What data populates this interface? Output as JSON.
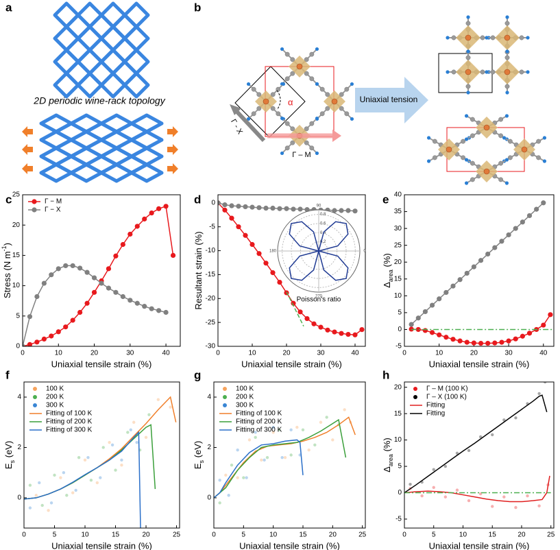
{
  "panel_a": {
    "label": "a",
    "caption": "2D periodic wine-rack topology"
  },
  "panel_b": {
    "label": "b",
    "angle": "α",
    "gamma_m": "Γ – M",
    "gamma_x": "Γ - X",
    "arrow": "Uniaxial tension"
  },
  "chart_data": [
    {
      "type": "line",
      "panel": "c",
      "xlabel": "Uniaxial tensile strain (%)",
      "ylabel": [
        "Stress (N m",
        "-1",
        ")"
      ],
      "ylabel_shift": "super",
      "xlim": [
        0,
        44
      ],
      "xticks": [
        0,
        10,
        20,
        30,
        40
      ],
      "ylim": [
        0,
        25
      ],
      "yticks": [
        0,
        5,
        10,
        15,
        20,
        25
      ],
      "legend": "upper left",
      "series": [
        {
          "name": "Γ − M",
          "color": "#e8191d",
          "marker": true,
          "x": [
            0,
            2,
            4,
            6,
            8,
            10,
            12,
            14,
            16,
            18,
            20,
            22,
            24,
            26,
            28,
            30,
            32,
            34,
            36,
            38,
            40,
            42
          ],
          "values": [
            0,
            0.3,
            0.7,
            1.2,
            1.7,
            2.4,
            3.2,
            4.3,
            5.6,
            7.1,
            8.9,
            10.8,
            12.8,
            14.9,
            16.8,
            18.5,
            19.8,
            21,
            22,
            22.7,
            23.1,
            15
          ]
        },
        {
          "name": "Γ − X",
          "color": "#808080",
          "marker": true,
          "x": [
            0,
            2,
            4,
            6,
            8,
            10,
            12,
            14,
            16,
            18,
            20,
            22,
            24,
            26,
            28,
            30,
            32,
            34,
            36,
            38,
            40
          ],
          "values": [
            0,
            4.9,
            8.2,
            10.4,
            11.8,
            12.8,
            13.3,
            13.3,
            12.9,
            12.2,
            11.3,
            10.4,
            9.6,
            8.9,
            8.2,
            7.6,
            7.1,
            6.6,
            6.2,
            5.9,
            5.6
          ]
        }
      ]
    },
    {
      "type": "line",
      "panel": "d",
      "xlabel": "Uniaxial tensile strain (%)",
      "ylabel": [
        "Resultant strain (%)"
      ],
      "xlim": [
        0,
        43
      ],
      "xticks": [
        0,
        10,
        20,
        30,
        40
      ],
      "ylim": [
        -30,
        1.7
      ],
      "yticks": [
        0,
        -5,
        -10,
        -15,
        -20,
        -25,
        -30
      ],
      "series": [
        {
          "color": "#e8191d",
          "marker": true,
          "x": [
            0,
            2,
            4,
            6,
            8,
            10,
            12,
            14,
            16,
            18,
            20,
            22,
            24,
            26,
            28,
            30,
            32,
            34,
            36,
            38,
            40,
            42
          ],
          "values": [
            0,
            -1.5,
            -3.2,
            -5,
            -6.8,
            -8.7,
            -10.6,
            -12.6,
            -14.6,
            -16.6,
            -18.8,
            -21,
            -22.8,
            -24.2,
            -25.3,
            -26,
            -26.6,
            -27,
            -27.3,
            -27.5,
            -27.6,
            -26.5
          ]
        },
        {
          "color": "#808080",
          "marker": true,
          "x": [
            0,
            2,
            4,
            6,
            8,
            10,
            12,
            14,
            16,
            18,
            20,
            22,
            24,
            26,
            28,
            30,
            32,
            34,
            36,
            38,
            40
          ],
          "values": [
            0,
            -0.4,
            -0.6,
            -0.7,
            -0.8,
            -0.9,
            -1,
            -1.1,
            -1.1,
            -1.2,
            -1.2,
            -1.3,
            -1.3,
            -1.4,
            -1.4,
            -1.5,
            -1.5,
            -1.6,
            -1.6,
            -1.6,
            -1.7
          ]
        },
        {
          "color": "#4caf50",
          "style": "dash",
          "x": [
            20,
            25
          ],
          "values": [
            -18.6,
            -25.8
          ]
        }
      ]
    },
    {
      "type": "line",
      "panel": "e",
      "xlabel": "Uniaxial tensile strain (%)",
      "ylabel": [
        "Δ",
        "area",
        " (%)"
      ],
      "ylabel_shift": "sub",
      "xlim": [
        0,
        43
      ],
      "xticks": [
        0,
        10,
        20,
        30,
        40
      ],
      "ylim": [
        -5,
        40
      ],
      "yticks": [
        -5,
        0,
        5,
        10,
        15,
        20,
        25,
        30,
        35,
        40
      ],
      "series": [
        {
          "color": "#808080",
          "marker": true,
          "x": [
            2,
            4,
            6,
            8,
            10,
            12,
            14,
            16,
            18,
            20,
            22,
            24,
            26,
            28,
            30,
            32,
            34,
            36,
            38,
            40
          ],
          "values": [
            1.5,
            3.4,
            5.3,
            7.2,
            9.1,
            11,
            12.9,
            14.8,
            16.7,
            18.6,
            20.5,
            22.4,
            24.3,
            26.2,
            28.1,
            30,
            31.9,
            33.8,
            35.7,
            37.6
          ]
        },
        {
          "color": "#e8191d",
          "marker": true,
          "x": [
            2,
            4,
            6,
            8,
            10,
            12,
            14,
            16,
            18,
            20,
            22,
            24,
            26,
            28,
            30,
            32,
            34,
            36,
            38,
            40,
            42
          ],
          "values": [
            0.1,
            0,
            -0.3,
            -0.9,
            -1.6,
            -2.3,
            -2.9,
            -3.4,
            -3.8,
            -4,
            -4.1,
            -4.1,
            -4,
            -3.8,
            -3.4,
            -2.8,
            -2,
            -1.1,
            0,
            1.3,
            4.4
          ]
        },
        {
          "color": "#4caf50",
          "style": "dashdot",
          "x": [
            2,
            42.5
          ],
          "values": [
            0,
            0
          ]
        }
      ]
    },
    {
      "type": "polar",
      "label": "Poisson's ratio",
      "rlim": [
        0,
        0.9
      ],
      "rticks": [
        0.2,
        0.4,
        0.6,
        0.8
      ],
      "angle_ticks": [
        0,
        90,
        180,
        270
      ],
      "color": "#1f3a93",
      "theta": [
        0,
        15,
        30,
        45,
        60,
        75,
        90,
        105,
        120,
        135,
        150,
        165,
        180,
        195,
        210,
        225,
        240,
        255,
        270,
        285,
        300,
        315,
        330,
        345
      ],
      "r": [
        0,
        0.43,
        0.74,
        0.85,
        0.74,
        0.43,
        0,
        0.43,
        0.74,
        0.85,
        0.74,
        0.43,
        0,
        0.43,
        0.74,
        0.85,
        0.74,
        0.43,
        0,
        0.43,
        0.74,
        0.85,
        0.74,
        0.43
      ]
    },
    {
      "type": "line",
      "panel": "f",
      "xlabel": "Uniaxial tensile strain (%)",
      "ylabel": [
        "E",
        "s",
        " (eV)"
      ],
      "ylabel_shift": "sub",
      "xlim": [
        0,
        25.5
      ],
      "xticks": [
        0,
        5,
        10,
        15,
        20,
        25
      ],
      "ylim": [
        -1.2,
        4.6
      ],
      "yticks": [
        0,
        2,
        4
      ],
      "legend": "upper left",
      "series": [
        {
          "name": "100 K",
          "kind": "scatter",
          "color": "#f7a35c",
          "x": [
            2,
            4,
            6,
            8,
            10,
            12,
            14,
            16,
            18,
            20,
            22,
            24
          ],
          "values": [
            0.1,
            -0.5,
            0.8,
            0.2,
            1.5,
            0.6,
            2.2,
            1.3,
            3,
            2.4,
            3.9,
            3.6
          ]
        },
        {
          "name": "200 K",
          "kind": "scatter",
          "color": "#4caf50",
          "x": [
            1,
            3,
            5,
            7,
            9,
            11,
            13,
            15,
            17,
            19,
            20.5
          ],
          "values": [
            0.5,
            -0.3,
            0.9,
            0.1,
            1.6,
            0.7,
            2,
            1.1,
            2.6,
            1.9,
            3.3
          ]
        },
        {
          "name": "300 K",
          "kind": "scatter",
          "color": "#3a86d4",
          "x": [
            1,
            2.5,
            4.5,
            6.5,
            8.5,
            10.5,
            12.5,
            14.5,
            16,
            17.5,
            18.5
          ],
          "values": [
            -0.4,
            0.6,
            -0.2,
            1,
            0.3,
            1.6,
            0.8,
            2.1,
            1.5,
            2.7,
            2.2
          ]
        },
        {
          "name": "Fitting of 100 K",
          "color": "#f07f2a",
          "x": [
            0,
            2,
            4,
            6,
            8,
            10,
            12,
            14,
            16,
            18,
            20,
            22,
            24,
            24.9
          ],
          "values": [
            -0.05,
            0,
            0.15,
            0.35,
            0.6,
            0.9,
            1.2,
            1.55,
            1.95,
            2.45,
            2.95,
            3.5,
            4,
            3
          ]
        },
        {
          "name": "Fitting of 200 K",
          "color": "#3a9f3a",
          "x": [
            0,
            2,
            4,
            6,
            8,
            10,
            12,
            14,
            16,
            18,
            20,
            20.8,
            21.5
          ],
          "values": [
            -0.05,
            0,
            0.15,
            0.35,
            0.6,
            0.9,
            1.2,
            1.5,
            1.9,
            2.35,
            2.8,
            2.9,
            0.35
          ]
        },
        {
          "name": "Fitting of 300 K",
          "color": "#2a6fc9",
          "x": [
            0,
            2,
            4,
            6,
            8,
            10,
            12,
            14,
            16,
            18,
            18.8,
            19.1
          ],
          "values": [
            -0.05,
            0,
            0.15,
            0.35,
            0.62,
            0.92,
            1.2,
            1.5,
            1.85,
            2.4,
            2.6,
            -1.2
          ]
        }
      ]
    },
    {
      "type": "line",
      "panel": "g",
      "xlabel": "Uniaxial tensile strain (%)",
      "ylabel": [
        "E",
        "s",
        " (eV)"
      ],
      "ylabel_shift": "sub",
      "xlim": [
        0,
        25.5
      ],
      "xticks": [
        0,
        5,
        10,
        15,
        20,
        25
      ],
      "ylim": [
        -1.2,
        4.6
      ],
      "yticks": [
        0,
        2,
        4
      ],
      "legend": "upper left",
      "series": [
        {
          "name": "100 K",
          "kind": "scatter",
          "color": "#f7a35c",
          "x": [
            2,
            4,
            6,
            8,
            10,
            12,
            14,
            16,
            18,
            20,
            22,
            23
          ],
          "values": [
            0.9,
            0.8,
            2.3,
            1.5,
            2.6,
            1.6,
            2.8,
            1.9,
            3,
            2.3,
            3.5,
            3
          ]
        },
        {
          "name": "200 K",
          "kind": "scatter",
          "color": "#4caf50",
          "x": [
            1,
            3,
            5,
            7,
            9,
            11,
            13,
            15,
            17,
            19,
            21
          ],
          "values": [
            -0.2,
            1.3,
            0.8,
            2.4,
            1.6,
            2.7,
            1.7,
            2.7,
            2.1,
            3.2,
            2.9
          ]
        },
        {
          "name": "300 K",
          "kind": "scatter",
          "color": "#3a86d4",
          "x": [
            1,
            2.5,
            4,
            5.5,
            7,
            8.5,
            10,
            11.5,
            13,
            14.5
          ],
          "values": [
            0.7,
            0.1,
            1.9,
            0.8,
            2.6,
            1.5,
            2.8,
            1.6,
            2.7,
            1.7
          ]
        },
        {
          "name": "Fitting of 100 K",
          "color": "#f07f2a",
          "x": [
            0,
            1,
            3,
            5,
            7,
            9,
            11,
            13,
            15,
            17,
            19,
            21,
            22.7,
            23.8
          ],
          "values": [
            0,
            0.2,
            0.8,
            1.4,
            1.85,
            2.05,
            2.1,
            2.15,
            2.25,
            2.4,
            2.6,
            2.9,
            3.2,
            2.5
          ]
        },
        {
          "name": "Fitting of 200 K",
          "color": "#3a9f3a",
          "x": [
            0,
            2,
            4,
            6,
            8,
            10,
            12,
            14,
            16,
            18,
            20,
            21,
            22.2
          ],
          "values": [
            0,
            0.4,
            1.1,
            1.6,
            2,
            2.1,
            2.15,
            2.2,
            2.4,
            2.65,
            2.95,
            3.1,
            1.6
          ]
        },
        {
          "name": "Fitting of 300 K",
          "color": "#2a6fc9",
          "x": [
            0,
            1,
            2,
            4,
            6,
            8,
            10,
            12,
            14,
            14.5,
            15
          ],
          "values": [
            0,
            0.2,
            0.6,
            1.3,
            1.8,
            2.1,
            2.15,
            2.25,
            2.3,
            2.2,
            0.9
          ]
        }
      ]
    },
    {
      "type": "line",
      "panel": "h",
      "xlabel": "Uniaxial tensile strain (%)",
      "ylabel": [
        "Δ",
        "area",
        " (%)"
      ],
      "ylabel_shift": "sub",
      "xlim": [
        0,
        25.5
      ],
      "xticks": [
        0,
        5,
        10,
        15,
        20,
        25
      ],
      "ylim": [
        -6.7,
        21
      ],
      "yticks": [
        -5,
        0,
        5,
        10,
        15,
        20
      ],
      "legend": "upper left",
      "series": [
        {
          "name": "Γ – M (100 K)",
          "kind": "scatter",
          "color": "#e8191d",
          "x": [
            1,
            3,
            5,
            7,
            9,
            11,
            13,
            15,
            17,
            19,
            21,
            23,
            24.5
          ],
          "values": [
            0.8,
            -0.6,
            1,
            -0.8,
            0.5,
            -1.5,
            -0.2,
            -2.6,
            -0.8,
            -2.8,
            -0.6,
            -2.5,
            1.5
          ]
        },
        {
          "name": "Γ – X (100 K)",
          "kind": "scatter",
          "color": "#000000",
          "x": [
            1,
            3,
            5,
            7,
            9,
            11,
            13,
            15,
            17,
            19,
            21,
            23,
            24
          ],
          "values": [
            1.6,
            2,
            4.4,
            5,
            7.5,
            8,
            10.6,
            11,
            13.8,
            14.2,
            16.9,
            18.8,
            21
          ]
        },
        {
          "name": "Fitting",
          "color": "#e01e1e",
          "x": [
            0,
            2,
            4,
            6,
            8,
            10,
            12,
            14,
            16,
            18,
            20,
            22,
            23.5,
            24.3,
            24.8
          ],
          "values": [
            0,
            0.2,
            0.3,
            0.2,
            0,
            -0.4,
            -0.8,
            -1.2,
            -1.5,
            -1.7,
            -1.7,
            -1.5,
            -1.3,
            0,
            3.2
          ]
        },
        {
          "name": "Fitting",
          "color": "#000000",
          "x": [
            0,
            2,
            4,
            6,
            8,
            10,
            12,
            14,
            16,
            18,
            20,
            22,
            23,
            23.5,
            24.3
          ],
          "values": [
            0,
            1.5,
            3.1,
            4.7,
            6.3,
            7.9,
            9.4,
            11,
            12.6,
            14.2,
            15.8,
            17.4,
            18.3,
            18.5,
            15.3
          ]
        },
        {
          "color": "#4caf50",
          "style": "dashdot",
          "x": [
            0,
            25
          ],
          "values": [
            0,
            0
          ]
        }
      ]
    }
  ]
}
